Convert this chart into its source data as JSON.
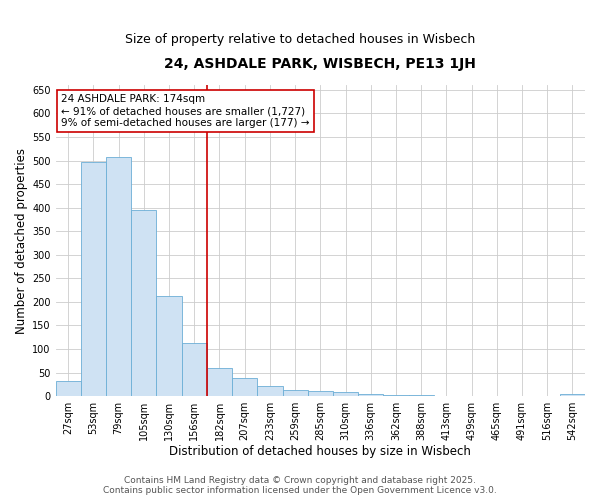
{
  "title": "24, ASHDALE PARK, WISBECH, PE13 1JH",
  "subtitle": "Size of property relative to detached houses in Wisbech",
  "xlabel": "Distribution of detached houses by size in Wisbech",
  "ylabel": "Number of detached properties",
  "categories": [
    "27sqm",
    "53sqm",
    "79sqm",
    "105sqm",
    "130sqm",
    "156sqm",
    "182sqm",
    "207sqm",
    "233sqm",
    "259sqm",
    "285sqm",
    "310sqm",
    "336sqm",
    "362sqm",
    "388sqm",
    "413sqm",
    "439sqm",
    "465sqm",
    "491sqm",
    "516sqm",
    "542sqm"
  ],
  "values": [
    33,
    497,
    508,
    395,
    213,
    112,
    60,
    38,
    21,
    14,
    10,
    9,
    5,
    3,
    2,
    1,
    1,
    0,
    1,
    0,
    4
  ],
  "bar_color": "#cfe2f3",
  "bar_edge_color": "#6baed6",
  "vline_index": 6,
  "vline_color": "#cc0000",
  "annotation_line1": "24 ASHDALE PARK: 174sqm",
  "annotation_line2": "← 91% of detached houses are smaller (1,727)",
  "annotation_line3": "9% of semi-detached houses are larger (177) →",
  "annotation_box_color": "#ffffff",
  "annotation_box_edge_color": "#cc0000",
  "ylim": [
    0,
    660
  ],
  "yticks": [
    0,
    50,
    100,
    150,
    200,
    250,
    300,
    350,
    400,
    450,
    500,
    550,
    600,
    650
  ],
  "footer_line1": "Contains HM Land Registry data © Crown copyright and database right 2025.",
  "footer_line2": "Contains public sector information licensed under the Open Government Licence v3.0.",
  "bg_color": "#ffffff",
  "grid_color": "#cccccc",
  "title_fontsize": 10,
  "subtitle_fontsize": 9,
  "axis_label_fontsize": 8.5,
  "tick_fontsize": 7,
  "annotation_fontsize": 7.5,
  "footer_fontsize": 6.5
}
